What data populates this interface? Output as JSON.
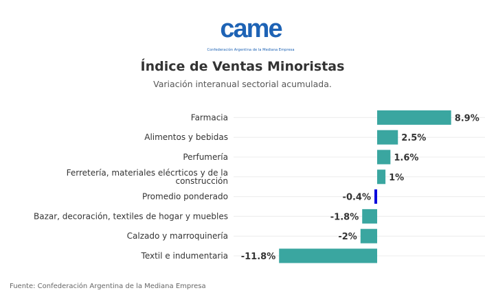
{
  "header": {
    "logo_text": "came",
    "logo_subtitle": "Confederación Argentina de la Mediana Empresa",
    "title": "Índice de Ventas Minoristas",
    "subtitle": "Variación interanual sectorial acumulada."
  },
  "footer": {
    "source": "Fuente: Confederación Argentina de la Mediana Empresa"
  },
  "colors": {
    "bar": "#3aa6a0",
    "highlight_bar": "#0a0adc",
    "grid": "#ececec",
    "logo": "#1e63b5"
  },
  "chart_data": {
    "type": "bar",
    "orientation": "horizontal",
    "title": "Índice de Ventas Minoristas",
    "subtitle": "Variación interanual sectorial acumulada.",
    "xlabel": "",
    "ylabel": "",
    "unit": "%",
    "xlim": [
      -11.8,
      8.9
    ],
    "grid": true,
    "legend": "none",
    "categories": [
      "Farmacia",
      "Alimentos y bebidas",
      "Perfumería",
      "Ferretería, materiales elécrticos y de la construcción",
      "Promedio ponderado",
      "Bazar, decoración, textiles de hogar y muebles",
      "Calzado y marroquinería",
      "Textil e indumentaria"
    ],
    "category_lines": [
      [
        "Farmacia"
      ],
      [
        "Alimentos y bebidas"
      ],
      [
        "Perfumería"
      ],
      [
        "Ferretería, materiales elécrticos y de la",
        "construcción"
      ],
      [
        "Promedio ponderado"
      ],
      [
        "Bazar, decoración, textiles de hogar y muebles"
      ],
      [
        "Calzado y marroquinería"
      ],
      [
        "Textil e indumentaria"
      ]
    ],
    "values": [
      8.9,
      2.5,
      1.6,
      1.0,
      -0.4,
      -1.8,
      -2.0,
      -11.8
    ],
    "value_labels": [
      "8.9%",
      "2.5%",
      "1.6%",
      "1%",
      "-0.4%",
      "-1.8%",
      "-2%",
      "-11.8%"
    ],
    "highlight_index": 4
  }
}
